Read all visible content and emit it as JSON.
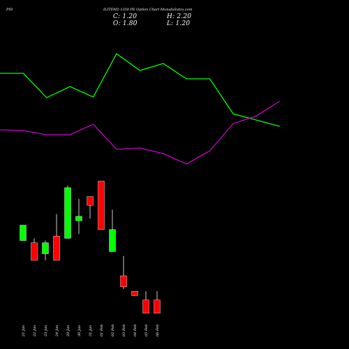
{
  "header": {
    "left": "PID",
    "title": "ILITEND 1350  PE Option  Chart MunafaSutra.com",
    "close_label": "C: 1.20",
    "high_label": "H: 2.20",
    "open_label": "O: 1.80",
    "low_label": "L: 1.20"
  },
  "chart_data": {
    "type": "candlestick",
    "categories": [
      "21 Jan",
      "22 Jan",
      "23 Jan",
      "24 Jan",
      "29 Jan",
      "30 Jan",
      "31 Jan",
      "01 Feb",
      "02 Feb",
      "03 Feb",
      "04 Feb",
      "05 Feb",
      "06 Feb"
    ],
    "ohlc": [
      {
        "open": 5.2,
        "high": 5.2,
        "low": 4.5,
        "close": 4.5,
        "color": "green"
      },
      {
        "open": 4.4,
        "high": 4.6,
        "low": 3.6,
        "close": 3.6,
        "color": "red"
      },
      {
        "open": 3.9,
        "high": 4.5,
        "low": 3.6,
        "close": 4.4,
        "color": "green"
      },
      {
        "open": 4.7,
        "high": 5.7,
        "low": 3.6,
        "close": 3.6,
        "color": "red"
      },
      {
        "open": 4.6,
        "high": 7.0,
        "low": 4.6,
        "close": 6.9,
        "color": "green"
      },
      {
        "open": 5.4,
        "high": 6.4,
        "low": 4.8,
        "close": 5.6,
        "color": "green"
      },
      {
        "open": 6.5,
        "high": 6.5,
        "low": 5.5,
        "close": 6.1,
        "color": "red"
      },
      {
        "open": 7.2,
        "high": 7.2,
        "low": 5.0,
        "close": 5.0,
        "color": "red"
      },
      {
        "open": 5.0,
        "high": 5.9,
        "low": 4.0,
        "close": 4.0,
        "color": "green"
      },
      {
        "open": 2.9,
        "high": 3.8,
        "low": 2.3,
        "close": 2.4,
        "color": "red"
      },
      {
        "open": 2.2,
        "high": 2.2,
        "low": 2.0,
        "close": 2.0,
        "color": "red"
      },
      {
        "open": 1.8,
        "high": 2.2,
        "low": 1.2,
        "close": 1.2,
        "color": "red"
      },
      {
        "open": 1.8,
        "high": 2.2,
        "low": 1.2,
        "close": 1.2,
        "color": "red"
      }
    ],
    "line_series": [
      {
        "color": "#00ff00",
        "values": [
          105,
          105,
          140,
          124,
          139,
          77,
          101,
          91,
          113,
          113,
          163,
          172,
          181
        ]
      },
      {
        "color": "#cc00cc",
        "values": [
          186,
          187,
          193,
          193,
          178,
          214,
          212,
          220,
          235,
          216,
          177,
          166,
          145
        ]
      }
    ],
    "colors": {
      "up": "#00ff00",
      "down": "#ff0000",
      "wick": "#ffffff",
      "background": "#000000"
    }
  }
}
